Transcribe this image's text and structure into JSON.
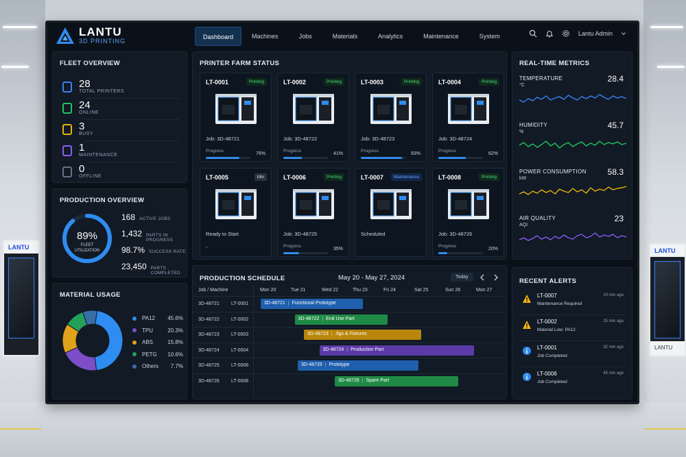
{
  "brand": {
    "name": "LANTU",
    "sub": "3D PRINTING"
  },
  "nav": [
    {
      "label": "Dashboard",
      "active": true
    },
    {
      "label": "Machines"
    },
    {
      "label": "Jobs"
    },
    {
      "label": "Materials"
    },
    {
      "label": "Analytics"
    },
    {
      "label": "Maintenance"
    },
    {
      "label": "System"
    }
  ],
  "user": {
    "name": "Lantu Admin"
  },
  "fleet": {
    "title": "FLEET OVERVIEW",
    "items": [
      {
        "value": "28",
        "label": "TOTAL PRINTERS",
        "color": "#3b82f6"
      },
      {
        "value": "24",
        "label": "ONLINE",
        "color": "#22c55e"
      },
      {
        "value": "3",
        "label": "BUSY",
        "color": "#eab308"
      },
      {
        "value": "1",
        "label": "MAINTENANCE",
        "color": "#8b5cf6"
      },
      {
        "value": "0",
        "label": "OFFLINE",
        "color": "#64748b"
      }
    ]
  },
  "production": {
    "title": "PRODUCTION OVERVIEW",
    "utilization": "89%",
    "utilization_value": 0.89,
    "utilization_label": "FLEET UTILIZATION",
    "stats": [
      {
        "value": "168",
        "label": "ACTIVE JOBS"
      },
      {
        "value": "1,432",
        "label": "PARTS IN PROGRESS"
      },
      {
        "value": "98.7%",
        "label": "SUCCESS RATE"
      },
      {
        "value": "23,450",
        "label": "PARTS COMPLETED"
      }
    ]
  },
  "materials": {
    "title": "MATERIAL USAGE",
    "items": [
      {
        "name": "PA12",
        "pct": "45.6%",
        "value": 45.6,
        "color": "#2f8cf0"
      },
      {
        "name": "TPU",
        "pct": "20.3%",
        "value": 20.3,
        "color": "#7c4fc9"
      },
      {
        "name": "ABS",
        "pct": "15.8%",
        "value": 15.8,
        "color": "#e0a21a"
      },
      {
        "name": "PETG",
        "pct": "10.6%",
        "value": 10.6,
        "color": "#23a05a"
      },
      {
        "name": "Others",
        "pct": "7.7%",
        "value": 7.7,
        "color": "#3a6ea8"
      }
    ]
  },
  "farm": {
    "title": "PRINTER FARM STATUS",
    "printers": [
      {
        "id": "LT-0001",
        "status": "Printing",
        "job": "Job: 3D-48721",
        "progress_label": "Progress",
        "progress": "76%",
        "progress_value": 0.76
      },
      {
        "id": "LT-0002",
        "status": "Printing",
        "job": "Job: 3D-48722",
        "progress_label": "Progress",
        "progress": "41%",
        "progress_value": 0.41
      },
      {
        "id": "LT-0003",
        "status": "Printing",
        "job": "Job: 3D-48723",
        "progress_label": "Progress",
        "progress": "93%",
        "progress_value": 0.93
      },
      {
        "id": "LT-0004",
        "status": "Printing",
        "job": "Job: 3D-48724",
        "progress_label": "Progress",
        "progress": "62%",
        "progress_value": 0.62
      },
      {
        "id": "LT-0005",
        "status": "Idle",
        "job": "Ready to Start",
        "progress_label": "",
        "progress": "-",
        "progress_value": 0
      },
      {
        "id": "LT-0006",
        "status": "Printing",
        "job": "Job: 3D-48725",
        "progress_label": "Progress",
        "progress": "35%",
        "progress_value": 0.35
      },
      {
        "id": "LT-0007",
        "status": "Maintenance",
        "job": "Scheduled",
        "progress_label": "",
        "progress": "",
        "progress_value": 0
      },
      {
        "id": "LT-0008",
        "status": "Printing",
        "job": "Job: 3D-48726",
        "progress_label": "Progress",
        "progress": "20%",
        "progress_value": 0.2
      }
    ]
  },
  "metrics": {
    "title": "REAL-TIME METRICS",
    "items": [
      {
        "name": "TEMPERATURE",
        "unit": "°C",
        "value": "28.4",
        "color": "#3b82f6"
      },
      {
        "name": "HUMIDITY",
        "unit": "%",
        "value": "45.7",
        "color": "#22c55e"
      },
      {
        "name": "POWER CONSUMPTION",
        "unit": "kW",
        "value": "58.3",
        "color": "#eab308"
      },
      {
        "name": "AIR QUALITY",
        "unit": "AQI",
        "value": "23",
        "color": "#8b5cf6"
      }
    ]
  },
  "schedule": {
    "title": "PRODUCTION SCHEDULE",
    "range": "May 20 - May 27, 2024",
    "today": "Today",
    "col_label": "Job / Machine",
    "days": [
      "Mon 20",
      "Tue 21",
      "Wed 22",
      "Thu 23",
      "Fri 24",
      "Sat 25",
      "Sun 26",
      "Mon 27"
    ],
    "rows": [
      {
        "job": "3D-48721",
        "machine": "LT-0001",
        "task": "Functional Prototype",
        "color": "#1f5fae"
      },
      {
        "job": "3D-48722",
        "machine": "LT-0002",
        "task": "End Use Part",
        "color": "#1f8a45"
      },
      {
        "job": "3D-48723",
        "machine": "LT-0003",
        "task": "Jigs & Fixtures",
        "color": "#b8860b"
      },
      {
        "job": "3D-48724",
        "machine": "LT-0004",
        "task": "Production Part",
        "color": "#5b3aa8"
      },
      {
        "job": "3D-48725",
        "machine": "LT-0006",
        "task": "Prototype",
        "color": "#1f5fae"
      },
      {
        "job": "3D-48726",
        "machine": "LT-0008",
        "task": "Spare Part",
        "color": "#1f8a45"
      }
    ]
  },
  "alerts": {
    "title": "RECENT ALERTS",
    "items": [
      {
        "id": "LT-0007",
        "msg": "Maintenance Required",
        "time": "10 min ago",
        "type": "warning"
      },
      {
        "id": "LT-0002",
        "msg": "Material Low: PA12",
        "time": "25 min ago",
        "type": "warning"
      },
      {
        "id": "LT-0001",
        "msg": "Job Completed",
        "time": "32 min ago",
        "type": "info"
      },
      {
        "id": "LT-0006",
        "msg": "Job Completed",
        "time": "45 min ago",
        "type": "info"
      }
    ]
  }
}
